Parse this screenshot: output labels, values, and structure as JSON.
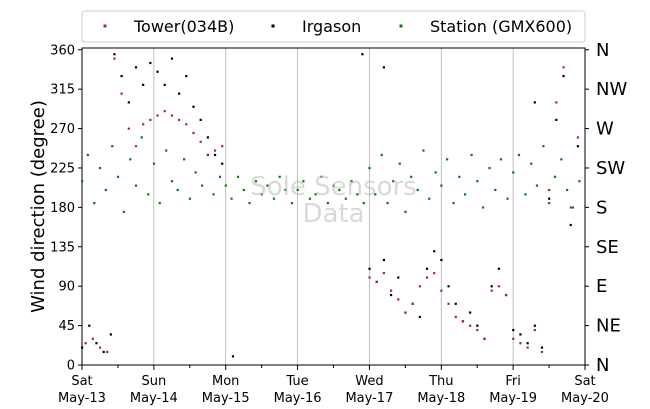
{
  "chart_data": {
    "type": "scatter",
    "title": "",
    "xlabel": "",
    "ylabel": "Wind direction (degree)",
    "ylim": [
      0,
      362
    ],
    "yticks": [
      0,
      45,
      90,
      135,
      180,
      225,
      270,
      315,
      360
    ],
    "compass_ticks": [
      {
        "value": 0,
        "label": "N"
      },
      {
        "value": 45,
        "label": "NE"
      },
      {
        "value": 90,
        "label": "E"
      },
      {
        "value": 135,
        "label": "SE"
      },
      {
        "value": 180,
        "label": "S"
      },
      {
        "value": 225,
        "label": "SW"
      },
      {
        "value": 270,
        "label": "W"
      },
      {
        "value": 315,
        "label": "NW"
      },
      {
        "value": 360,
        "label": "N"
      }
    ],
    "xlim": [
      "2017-05-13 00:00",
      "2017-05-20 00:00"
    ],
    "xticks_major": [
      {
        "day": 0,
        "label1": "Sat",
        "label2": "May-13"
      },
      {
        "day": 1,
        "label1": "Sun",
        "label2": "May-14"
      },
      {
        "day": 2,
        "label1": "Mon",
        "label2": "May-15"
      },
      {
        "day": 3,
        "label1": "Tue",
        "label2": "May-16"
      },
      {
        "day": 4,
        "label1": "Wed",
        "label2": "May-17"
      },
      {
        "day": 5,
        "label1": "Thu",
        "label2": "May-18"
      },
      {
        "day": 6,
        "label1": "Fri",
        "label2": "May-19"
      },
      {
        "day": 7,
        "label1": "Sat",
        "label2": "May-20"
      }
    ],
    "minor_ticks_per_day": 2,
    "grid": "vertical",
    "legend_position": "top",
    "series": [
      {
        "name": "Station (GMX600)",
        "color": "#008000",
        "marker": "dot",
        "points": [
          [
            0.0,
            210
          ],
          [
            0.08,
            240
          ],
          [
            0.17,
            185
          ],
          [
            0.25,
            225
          ],
          [
            0.33,
            200
          ],
          [
            0.42,
            250
          ],
          [
            0.5,
            215
          ],
          [
            0.58,
            175
          ],
          [
            0.67,
            235
          ],
          [
            0.75,
            205
          ],
          [
            0.83,
            260
          ],
          [
            0.92,
            195
          ],
          [
            1.0,
            230
          ],
          [
            1.08,
            185
          ],
          [
            1.17,
            245
          ],
          [
            1.25,
            210
          ],
          [
            1.33,
            200
          ],
          [
            1.42,
            235
          ],
          [
            1.5,
            190
          ],
          [
            1.58,
            220
          ],
          [
            1.67,
            205
          ],
          [
            1.75,
            240
          ],
          [
            1.83,
            195
          ],
          [
            1.92,
            215
          ],
          [
            2.0,
            205
          ],
          [
            2.08,
            190
          ],
          [
            2.17,
            215
          ],
          [
            2.25,
            200
          ],
          [
            2.33,
            185
          ],
          [
            2.42,
            210
          ],
          [
            2.5,
            195
          ],
          [
            2.58,
            205
          ],
          [
            2.67,
            190
          ],
          [
            2.75,
            215
          ],
          [
            2.83,
            200
          ],
          [
            2.92,
            185
          ],
          [
            3.0,
            200
          ],
          [
            3.08,
            210
          ],
          [
            3.17,
            190
          ],
          [
            3.25,
            195
          ],
          [
            3.33,
            215
          ],
          [
            3.42,
            185
          ],
          [
            3.5,
            205
          ],
          [
            3.58,
            200
          ],
          [
            3.67,
            190
          ],
          [
            3.75,
            210
          ],
          [
            3.83,
            195
          ],
          [
            3.92,
            185
          ],
          [
            4.0,
            225
          ],
          [
            4.08,
            195
          ],
          [
            4.17,
            240
          ],
          [
            4.25,
            185
          ],
          [
            4.33,
            210
          ],
          [
            4.42,
            230
          ],
          [
            4.5,
            175
          ],
          [
            4.58,
            215
          ],
          [
            4.67,
            200
          ],
          [
            4.75,
            245
          ],
          [
            4.83,
            190
          ],
          [
            4.92,
            220
          ],
          [
            5.0,
            205
          ],
          [
            5.08,
            235
          ],
          [
            5.17,
            185
          ],
          [
            5.25,
            215
          ],
          [
            5.33,
            195
          ],
          [
            5.42,
            240
          ],
          [
            5.5,
            210
          ],
          [
            5.58,
            180
          ],
          [
            5.67,
            225
          ],
          [
            5.75,
            200
          ],
          [
            5.83,
            235
          ],
          [
            5.92,
            190
          ],
          [
            6.0,
            220
          ],
          [
            6.08,
            240
          ],
          [
            6.17,
            195
          ],
          [
            6.25,
            230
          ],
          [
            6.33,
            205
          ],
          [
            6.42,
            250
          ],
          [
            6.5,
            185
          ],
          [
            6.58,
            215
          ],
          [
            6.67,
            235
          ],
          [
            6.75,
            200
          ],
          [
            6.83,
            180
          ],
          [
            6.92,
            210
          ]
        ]
      },
      {
        "name": "Irgason",
        "color": "#000000",
        "marker": "dot",
        "points": [
          [
            0.0,
            20
          ],
          [
            0.1,
            45
          ],
          [
            0.2,
            25
          ],
          [
            0.3,
            15
          ],
          [
            0.4,
            35
          ],
          [
            0.45,
            355
          ],
          [
            0.55,
            330
          ],
          [
            0.65,
            300
          ],
          [
            0.75,
            340
          ],
          [
            0.85,
            320
          ],
          [
            0.95,
            345
          ],
          [
            1.05,
            335
          ],
          [
            1.15,
            320
          ],
          [
            1.25,
            350
          ],
          [
            1.35,
            310
          ],
          [
            1.45,
            330
          ],
          [
            1.55,
            295
          ],
          [
            1.65,
            280
          ],
          [
            1.75,
            260
          ],
          [
            1.85,
            240
          ],
          [
            1.95,
            230
          ],
          [
            4.0,
            110
          ],
          [
            4.1,
            95
          ],
          [
            4.2,
            120
          ],
          [
            4.3,
            80
          ],
          [
            4.4,
            100
          ],
          [
            4.5,
            60
          ],
          [
            4.6,
            70
          ],
          [
            4.7,
            55
          ],
          [
            4.8,
            110
          ],
          [
            4.9,
            130
          ],
          [
            5.0,
            120
          ],
          [
            5.1,
            90
          ],
          [
            5.2,
            70
          ],
          [
            5.3,
            50
          ],
          [
            5.4,
            60
          ],
          [
            5.5,
            45
          ],
          [
            5.6,
            30
          ],
          [
            5.7,
            90
          ],
          [
            5.8,
            110
          ],
          [
            5.9,
            80
          ],
          [
            6.0,
            40
          ],
          [
            6.1,
            35
          ],
          [
            6.2,
            25
          ],
          [
            6.3,
            45
          ],
          [
            6.4,
            20
          ],
          [
            6.5,
            190
          ],
          [
            6.6,
            280
          ],
          [
            6.7,
            330
          ],
          [
            6.8,
            160
          ],
          [
            6.9,
            250
          ],
          [
            2.1,
            10
          ],
          [
            3.9,
            355
          ],
          [
            4.2,
            340
          ],
          [
            6.3,
            300
          ]
        ]
      },
      {
        "name": "Tower(034B)",
        "color": "#a52a2a",
        "marker": "dot",
        "points": [
          [
            0.05,
            25
          ],
          [
            0.15,
            30
          ],
          [
            0.25,
            20
          ],
          [
            0.35,
            15
          ],
          [
            0.45,
            350
          ],
          [
            0.55,
            310
          ],
          [
            0.65,
            270
          ],
          [
            0.75,
            250
          ],
          [
            0.85,
            275
          ],
          [
            0.95,
            280
          ],
          [
            1.05,
            285
          ],
          [
            1.15,
            290
          ],
          [
            1.25,
            285
          ],
          [
            1.35,
            280
          ],
          [
            1.45,
            275
          ],
          [
            1.55,
            265
          ],
          [
            1.65,
            255
          ],
          [
            1.75,
            240
          ],
          [
            1.85,
            245
          ],
          [
            1.95,
            250
          ],
          [
            4.0,
            100
          ],
          [
            4.1,
            95
          ],
          [
            4.2,
            105
          ],
          [
            4.3,
            85
          ],
          [
            4.4,
            75
          ],
          [
            4.5,
            60
          ],
          [
            4.6,
            70
          ],
          [
            4.7,
            90
          ],
          [
            4.8,
            100
          ],
          [
            4.9,
            105
          ],
          [
            5.0,
            85
          ],
          [
            5.1,
            70
          ],
          [
            5.2,
            55
          ],
          [
            5.3,
            50
          ],
          [
            5.4,
            45
          ],
          [
            5.5,
            40
          ],
          [
            5.6,
            30
          ],
          [
            5.7,
            85
          ],
          [
            5.8,
            90
          ],
          [
            5.9,
            80
          ],
          [
            6.0,
            30
          ],
          [
            6.1,
            25
          ],
          [
            6.2,
            20
          ],
          [
            6.3,
            40
          ],
          [
            6.4,
            15
          ],
          [
            6.5,
            200
          ],
          [
            6.6,
            300
          ],
          [
            6.7,
            340
          ],
          [
            6.8,
            180
          ],
          [
            6.9,
            260
          ]
        ]
      }
    ]
  },
  "legend": {
    "items": [
      {
        "label": "Tower(034B)",
        "color": "#a52a2a"
      },
      {
        "label": "Irgason",
        "color": "#000000"
      },
      {
        "label": "Station (GMX600)",
        "color": "#008000"
      }
    ]
  },
  "watermark": {
    "line1": "Sole Sensors",
    "line2": "Data"
  }
}
